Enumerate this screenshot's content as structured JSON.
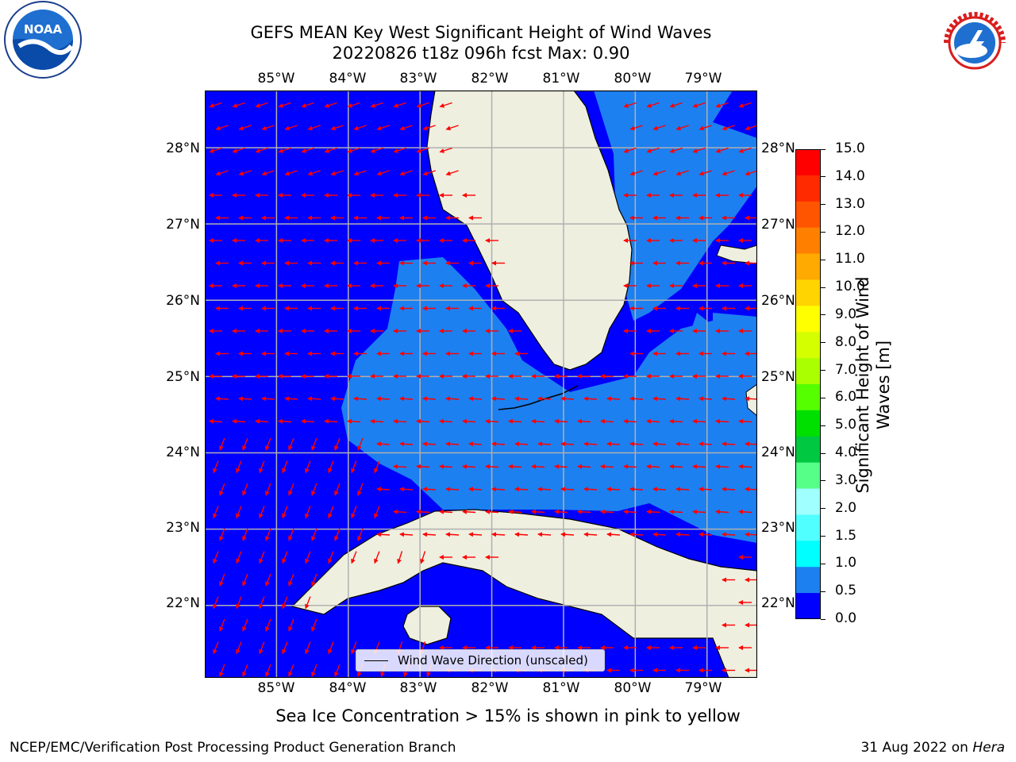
{
  "header": {
    "title_line1": "GEFS MEAN Key West Significant Height of Wind Waves",
    "title_line2": "20220826 t18z 096h fcst   Max: 0.90"
  },
  "logos": {
    "left": {
      "name": "noaa-logo",
      "text": "NOAA"
    },
    "right": {
      "name": "nws-logo",
      "text": "NATIONAL WEATHER SERVICE"
    }
  },
  "map": {
    "lon_labels": [
      "85°W",
      "84°W",
      "83°W",
      "82°W",
      "81°W",
      "80°W",
      "79°W"
    ],
    "lat_labels": [
      "28°N",
      "27°N",
      "26°N",
      "25°N",
      "24°N",
      "23°N",
      "22°N"
    ],
    "lon_range": [
      -86.0,
      -78.3
    ],
    "lat_range": [
      21.05,
      28.75
    ],
    "ocean_colors": {
      "low": "#0000ff",
      "mid": "#1d80f0"
    },
    "land_color": "#efefe0",
    "arrow_color": "#ff0000",
    "gridline_color": "#b0b0b0"
  },
  "legend": {
    "label": "Wind Wave Direction (unscaled)"
  },
  "colorbar": {
    "title": "Significant Height of Wind Waves [m]",
    "tick_labels": [
      "15.0",
      "14.0",
      "13.0",
      "12.0",
      "11.0",
      "10.0",
      "9.0",
      "8.0",
      "7.0",
      "6.0",
      "5.0",
      "4.0",
      "3.0",
      "2.0",
      "1.5",
      "1.0",
      "0.5",
      "0.0"
    ],
    "colors_top_to_bottom": [
      "#ff0000",
      "#ff2a00",
      "#ff5500",
      "#ff8000",
      "#ffaa00",
      "#ffd400",
      "#ffff00",
      "#d4ff00",
      "#aaff00",
      "#55ff00",
      "#00e000",
      "#00c840",
      "#55ff88",
      "#a0ffff",
      "#50ffff",
      "#00ffff",
      "#1d80f0",
      "#0000ff"
    ]
  },
  "subtitle": "Sea Ice Concentration > 15% is shown in pink to yellow",
  "footer": {
    "left": "NCEP/EMC/Verification Post Processing Product Generation Branch",
    "right_prefix": "31 Aug 2022 on ",
    "right_host": "Hera"
  }
}
